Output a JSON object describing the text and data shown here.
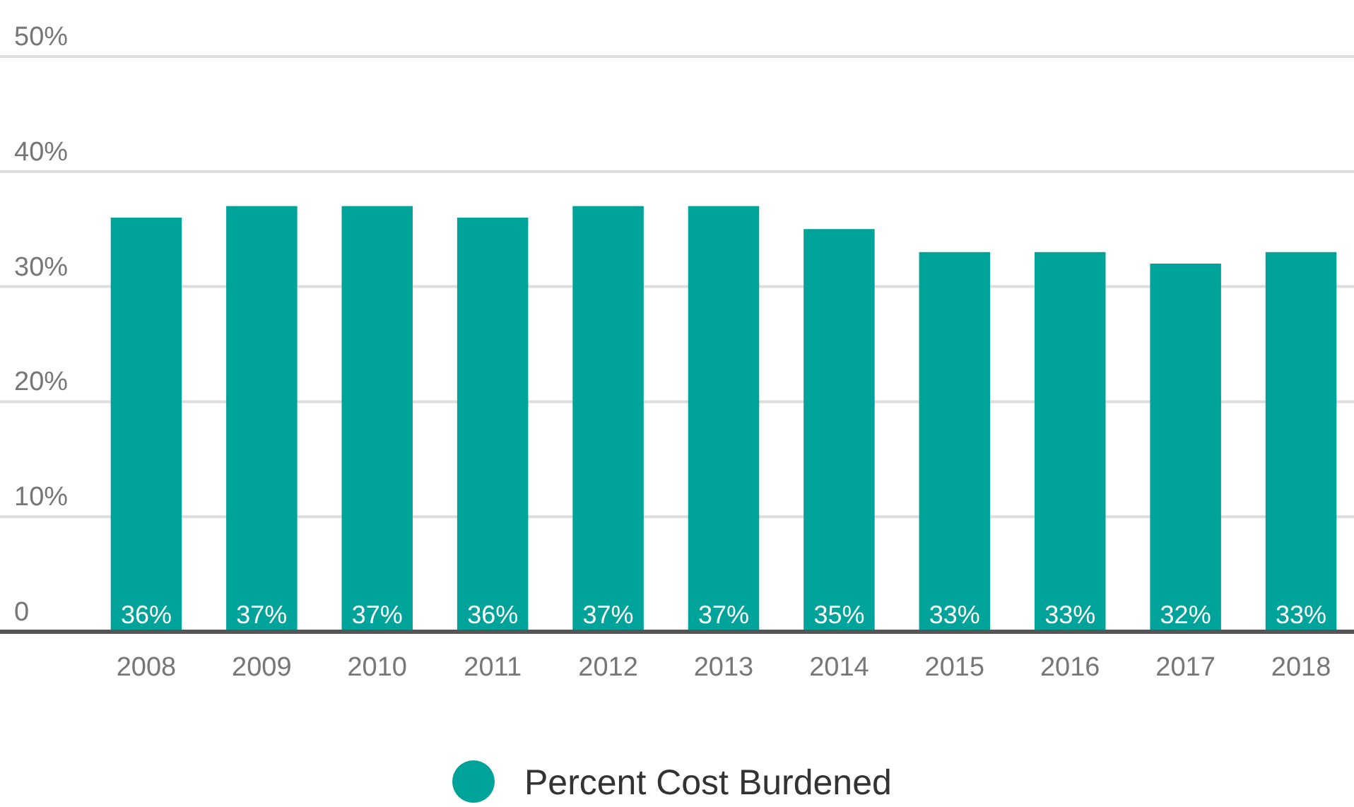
{
  "chart_data": {
    "type": "bar",
    "categories": [
      "2008",
      "2009",
      "2010",
      "2011",
      "2012",
      "2013",
      "2014",
      "2015",
      "2016",
      "2017",
      "2018"
    ],
    "series": [
      {
        "name": "Percent Cost Burdened",
        "color": "#00a39a",
        "values": [
          36,
          37,
          37,
          36,
          37,
          37,
          35,
          33,
          33,
          32,
          33
        ],
        "value_labels": [
          "36%",
          "37%",
          "37%",
          "36%",
          "37%",
          "37%",
          "35%",
          "33%",
          "33%",
          "32%",
          "33%"
        ]
      }
    ],
    "ylim": [
      0,
      50
    ],
    "yticks": [
      {
        "value": 0,
        "label": "0"
      },
      {
        "value": 10,
        "label": "10%"
      },
      {
        "value": 20,
        "label": "20%"
      },
      {
        "value": 30,
        "label": "30%"
      },
      {
        "value": 40,
        "label": "40%"
      },
      {
        "value": 50,
        "label": "50%"
      }
    ],
    "grid": "y",
    "legend": "bottom"
  }
}
